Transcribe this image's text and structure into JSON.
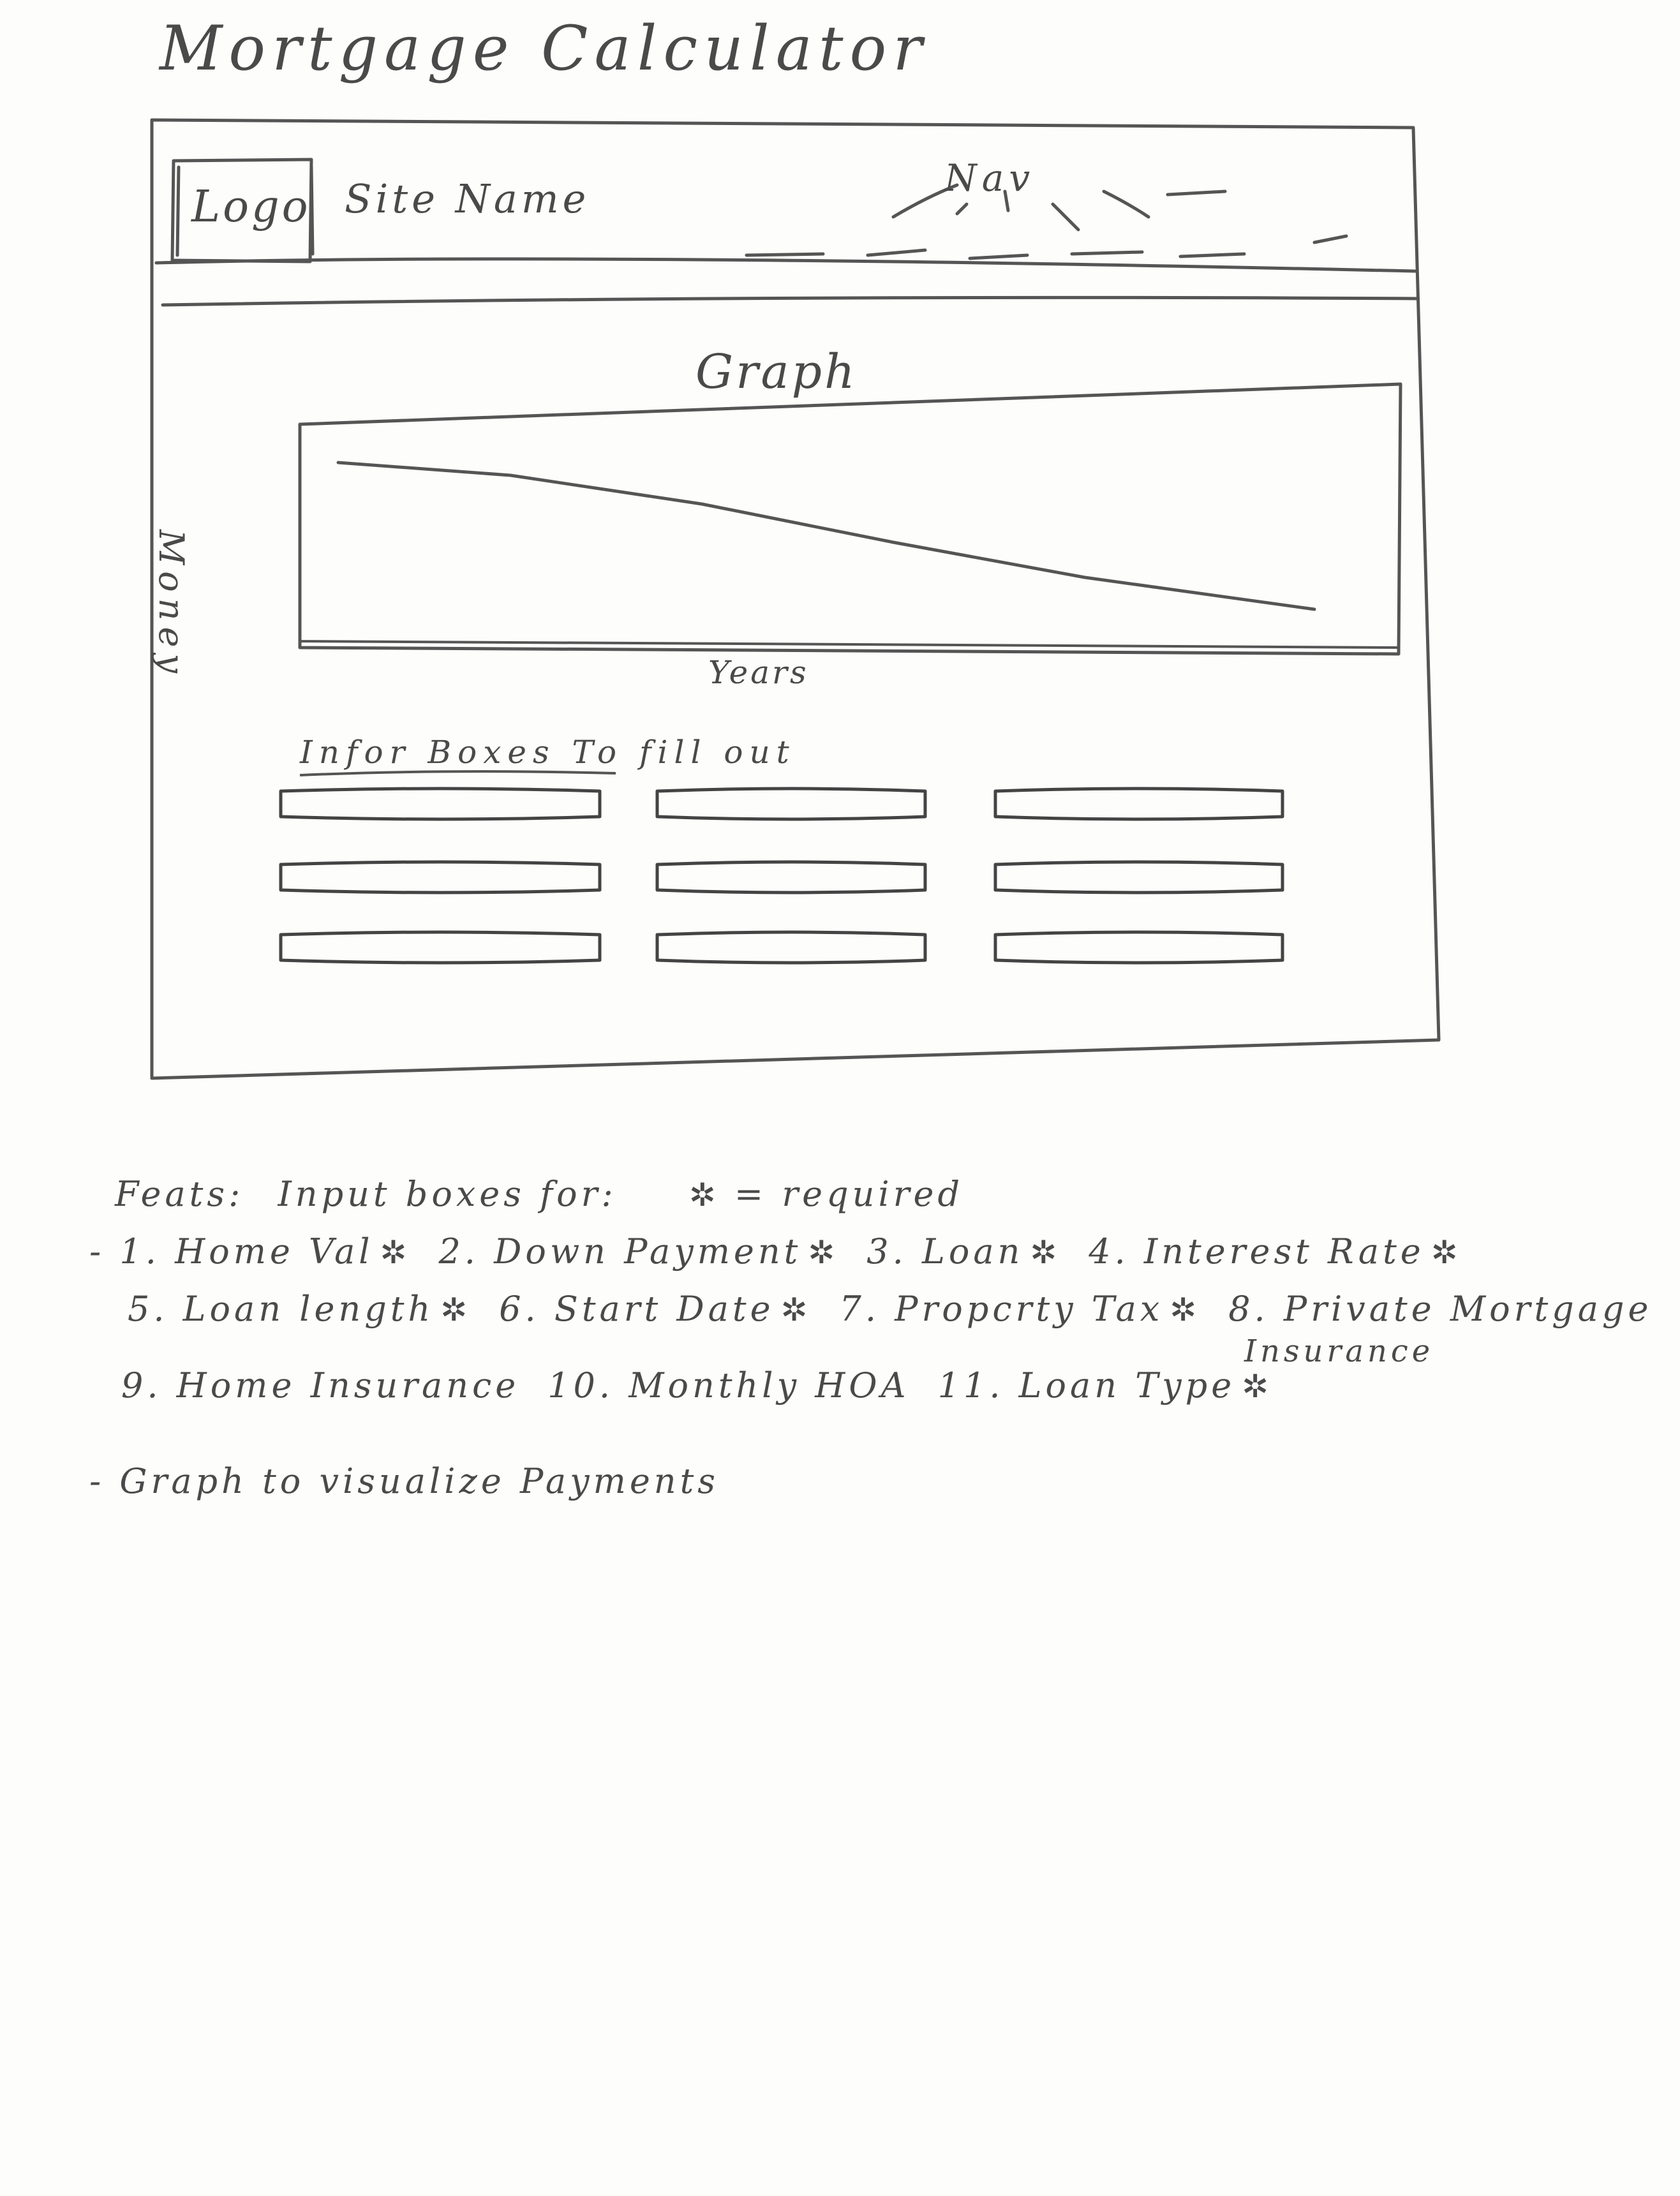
{
  "page_title": "Mortgage Calculator",
  "header": {
    "logo_label": "Logo",
    "site_name": "Site Name",
    "nav_label": "Nav"
  },
  "graph": {
    "title": "Graph",
    "y_axis_label": "Money",
    "x_axis_label": "Years"
  },
  "info_boxes_label": "Infor Boxes To fill out",
  "input_boxes": {
    "columns": 3,
    "rows": 3
  },
  "notes": {
    "feats_label": "Feats:",
    "feats_intro": "Input boxes for:",
    "required_key": "= required",
    "star_symbol": "✲",
    "row1": [
      "- 1. Home Val",
      "2. Down Payment",
      "3. Loan",
      "4. Interest Rate"
    ],
    "row2": [
      "5. Loan length",
      "6. Start Date",
      "7. Propcrty Tax",
      "8. Private Mortgage"
    ],
    "row2_continuation": "Insurance",
    "row3": [
      "9. Home Insurance",
      "10. Monthly HOA",
      "11. Loan Type"
    ],
    "graph_note": "- Graph to visualize Payments"
  },
  "colors": {
    "pencil": "#4a4a4a",
    "paper": "#fdfdfc"
  }
}
